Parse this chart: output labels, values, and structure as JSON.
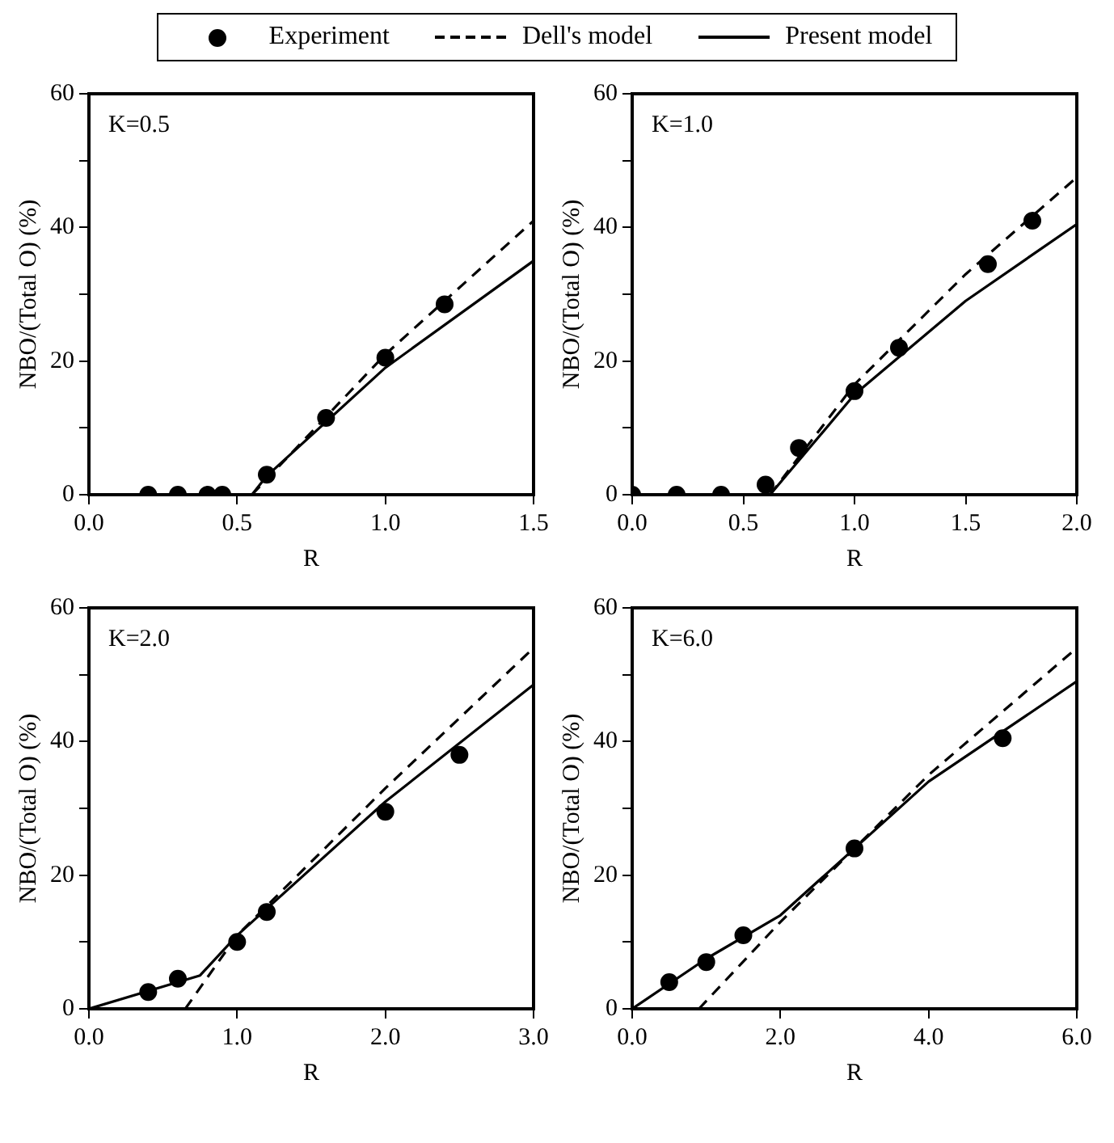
{
  "chart_data": [
    {
      "type": "scatter",
      "xlabel": "R",
      "ylabel": "NBO/(Total O) (%)",
      "annotations": [
        "K=0.5"
      ],
      "legend": "top",
      "xlim": [
        0,
        1.5
      ],
      "xticks": [
        {
          "value": 0,
          "label": "0.0"
        },
        {
          "value": 0.5,
          "label": "0.5"
        },
        {
          "value": 1,
          "label": "1.0"
        },
        {
          "value": 1.5,
          "label": "1.5"
        }
      ],
      "ylim": [
        0,
        60
      ],
      "yticks": [
        0,
        {
          "value": 10,
          "label": null
        },
        20,
        {
          "value": 30,
          "label": null
        },
        40,
        {
          "value": 50,
          "label": null
        },
        60
      ],
      "series": [
        {
          "name": "Experiment",
          "type": "scatter",
          "marker": "circle",
          "color": "#000000",
          "x": [
            0.2,
            0.3,
            0.4,
            0.45,
            0.6,
            0.8,
            1.0,
            1.2
          ],
          "values": [
            0,
            0,
            0,
            0,
            3,
            11.5,
            20.5,
            28.5
          ]
        },
        {
          "name": "Dell's model",
          "type": "line",
          "marker": "none",
          "line_style": "dashed",
          "color": "#000000",
          "x": [
            0.55,
            1.0,
            1.5
          ],
          "values": [
            0,
            21,
            41
          ]
        },
        {
          "name": "Present model",
          "type": "line",
          "marker": "none",
          "line_style": "solid",
          "color": "#000000",
          "x": [
            0,
            0.55,
            0.6,
            1.0,
            1.5
          ],
          "values": [
            0,
            0,
            2.8,
            19,
            35
          ]
        }
      ]
    },
    {
      "type": "scatter",
      "xlabel": "R",
      "ylabel": "NBO/(Total O) (%)",
      "annotations": [
        "K=1.0"
      ],
      "xlim": [
        0,
        2
      ],
      "xticks": [
        {
          "value": 0,
          "label": "0.0"
        },
        {
          "value": 0.5,
          "label": "0.5"
        },
        {
          "value": 1,
          "label": "1.0"
        },
        {
          "value": 1.5,
          "label": "1.5"
        },
        {
          "value": 2,
          "label": "2.0"
        }
      ],
      "ylim": [
        0,
        60
      ],
      "yticks": [
        0,
        {
          "value": 10,
          "label": null
        },
        20,
        {
          "value": 30,
          "label": null
        },
        40,
        {
          "value": 50,
          "label": null
        },
        60
      ],
      "series": [
        {
          "type": "scatter",
          "marker": "circle",
          "color": "#000000",
          "x": [
            0,
            0.2,
            0.4,
            0.6,
            0.75,
            1.0,
            1.2,
            1.6,
            1.8
          ],
          "values": [
            0,
            0,
            0,
            1.5,
            7,
            15.5,
            22,
            34.5,
            41
          ]
        },
        {
          "type": "line",
          "marker": "none",
          "line_style": "dashed",
          "color": "#000000",
          "x": [
            0.62,
            1.0,
            1.5,
            2.0
          ],
          "values": [
            0,
            16.5,
            33,
            47.5
          ]
        },
        {
          "type": "line",
          "marker": "none",
          "line_style": "solid",
          "color": "#000000",
          "x": [
            0,
            0.62,
            1.0,
            1.5,
            2.0
          ],
          "values": [
            0,
            0,
            15,
            29,
            40.5
          ]
        }
      ]
    },
    {
      "type": "scatter",
      "xlabel": "R",
      "ylabel": "NBO/(Total O) (%)",
      "annotations": [
        "K=2.0"
      ],
      "xlim": [
        0,
        3
      ],
      "xticks": [
        {
          "value": 0,
          "label": "0.0"
        },
        {
          "value": 1,
          "label": "1.0"
        },
        {
          "value": 2,
          "label": "2.0"
        },
        {
          "value": 3,
          "label": "3.0"
        }
      ],
      "ylim": [
        0,
        60
      ],
      "yticks": [
        0,
        {
          "value": 10,
          "label": null
        },
        20,
        {
          "value": 30,
          "label": null
        },
        40,
        {
          "value": 50,
          "label": null
        },
        60
      ],
      "series": [
        {
          "type": "scatter",
          "marker": "circle",
          "color": "#000000",
          "x": [
            0.4,
            0.6,
            1.0,
            1.2,
            2.0,
            2.5
          ],
          "values": [
            2.5,
            4.5,
            10,
            14.5,
            29.5,
            38
          ]
        },
        {
          "type": "line",
          "marker": "none",
          "line_style": "dashed",
          "color": "#000000",
          "x": [
            0.65,
            1.0,
            2.0,
            3.0
          ],
          "values": [
            0,
            11,
            33,
            54
          ]
        },
        {
          "type": "line",
          "marker": "none",
          "line_style": "solid",
          "color": "#000000",
          "x": [
            0,
            0.75,
            1.0,
            2.0,
            3.0
          ],
          "values": [
            0,
            5,
            11,
            31,
            48.5
          ]
        }
      ]
    },
    {
      "type": "scatter",
      "xlabel": "R",
      "ylabel": "NBO/(Total O) (%)",
      "annotations": [
        "K=6.0"
      ],
      "xlim": [
        0,
        6
      ],
      "xticks": [
        {
          "value": 0,
          "label": "0.0"
        },
        {
          "value": 2,
          "label": "2.0"
        },
        {
          "value": 4,
          "label": "4.0"
        },
        {
          "value": 6,
          "label": "6.0"
        }
      ],
      "ylim": [
        0,
        60
      ],
      "yticks": [
        0,
        {
          "value": 10,
          "label": null
        },
        20,
        {
          "value": 30,
          "label": null
        },
        40,
        {
          "value": 50,
          "label": null
        },
        60
      ],
      "series": [
        {
          "type": "scatter",
          "marker": "circle",
          "color": "#000000",
          "x": [
            0.5,
            1.0,
            1.5,
            3.0,
            5.0
          ],
          "values": [
            4,
            7,
            11,
            24,
            40.5
          ]
        },
        {
          "type": "line",
          "marker": "none",
          "line_style": "dashed",
          "color": "#000000",
          "x": [
            0.9,
            2.0,
            4.0,
            6.0
          ],
          "values": [
            0,
            13,
            35,
            54
          ]
        },
        {
          "type": "line",
          "marker": "none",
          "line_style": "solid",
          "color": "#000000",
          "x": [
            0,
            1.0,
            2.0,
            3.0,
            4.0,
            6.0
          ],
          "values": [
            0,
            7.5,
            14,
            24,
            34,
            49
          ]
        }
      ]
    }
  ]
}
